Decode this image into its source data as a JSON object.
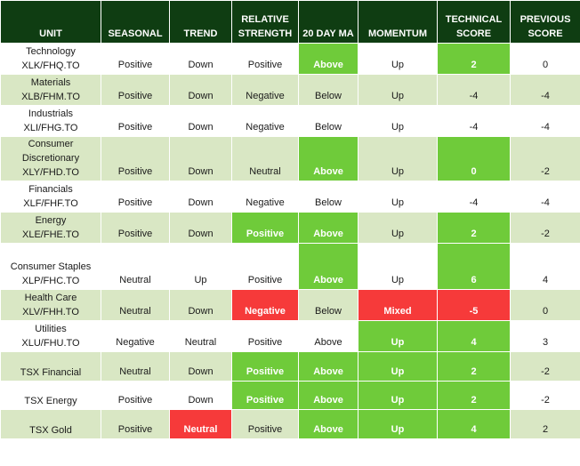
{
  "headers": [
    "UNIT",
    "SEASONAL",
    "TREND",
    "RELATIVE STRENGTH",
    "20 DAY MA",
    "MOMENTUM",
    "TECHNICAL SCORE",
    "PREVIOUS SCORE"
  ],
  "colors": {
    "header_bg": "#0f3d12",
    "band": "#d9e7c4",
    "positive_highlight": "#6fcb3a",
    "negative_highlight": "#f63a3a"
  },
  "rows": [
    {
      "name1": "Technology",
      "name2": "XLK/FHQ.TO",
      "seasonal": "Positive",
      "trend": "Down",
      "rel_strength": "Positive",
      "ma20": "Above",
      "momentum": "Up",
      "score": "2",
      "prev": "0"
    },
    {
      "name1": "Materials",
      "name2": "XLB/FHM.TO",
      "seasonal": "Positive",
      "trend": "Down",
      "rel_strength": "Negative",
      "ma20": "Below",
      "momentum": "Up",
      "score": "-4",
      "prev": "-4"
    },
    {
      "name1": "Industrials",
      "name2": "XLI/FHG.TO",
      "seasonal": "Positive",
      "trend": "Down",
      "rel_strength": "Negative",
      "ma20": "Below",
      "momentum": "Up",
      "score": "-4",
      "prev": "-4"
    },
    {
      "name1": "Consumer Discretionary",
      "name2": "XLY/FHD.TO",
      "seasonal": "Positive",
      "trend": "Down",
      "rel_strength": "Neutral",
      "ma20": "Above",
      "momentum": "Up",
      "score": "0",
      "prev": "-2"
    },
    {
      "name1": "Financials",
      "name2": "XLF/FHF.TO",
      "seasonal": "Positive",
      "trend": "Down",
      "rel_strength": "Negative",
      "ma20": "Below",
      "momentum": "Up",
      "score": "-4",
      "prev": "-4"
    },
    {
      "name1": "Energy",
      "name2": "XLE/FHE.TO",
      "seasonal": "Positive",
      "trend": "Down",
      "rel_strength": "Positive",
      "ma20": "Above",
      "momentum": "Up",
      "score": "2",
      "prev": "-2"
    },
    {
      "name1": "Consumer Staples",
      "name2": "XLP/FHC.TO",
      "seasonal": "Neutral",
      "trend": "Up",
      "rel_strength": "Positive",
      "ma20": "Above",
      "momentum": "Up",
      "score": "6",
      "prev": "4"
    },
    {
      "name1": "Health Care",
      "name2": "XLV/FHH.TO",
      "seasonal": "Neutral",
      "trend": "Down",
      "rel_strength": "Negative",
      "ma20": "Below",
      "momentum": "Mixed",
      "score": "-5",
      "prev": "0"
    },
    {
      "name1": "Utilities",
      "name2": "XLU/FHU.TO",
      "seasonal": "Negative",
      "trend": "Neutral",
      "rel_strength": "Positive",
      "ma20": "Above",
      "momentum": "Up",
      "score": "4",
      "prev": "3"
    },
    {
      "name1": "TSX Financial",
      "name2": "",
      "seasonal": "Neutral",
      "trend": "Down",
      "rel_strength": "Positive",
      "ma20": "Above",
      "momentum": "Up",
      "score": "2",
      "prev": "-2"
    },
    {
      "name1": "TSX Energy",
      "name2": "",
      "seasonal": "Positive",
      "trend": "Down",
      "rel_strength": "Positive",
      "ma20": "Above",
      "momentum": "Up",
      "score": "2",
      "prev": "-2"
    },
    {
      "name1": "TSX Gold",
      "name2": "",
      "seasonal": "Positive",
      "trend": "Neutral",
      "rel_strength": "Positive",
      "ma20": "Above",
      "momentum": "Up",
      "score": "4",
      "prev": "2"
    }
  ]
}
